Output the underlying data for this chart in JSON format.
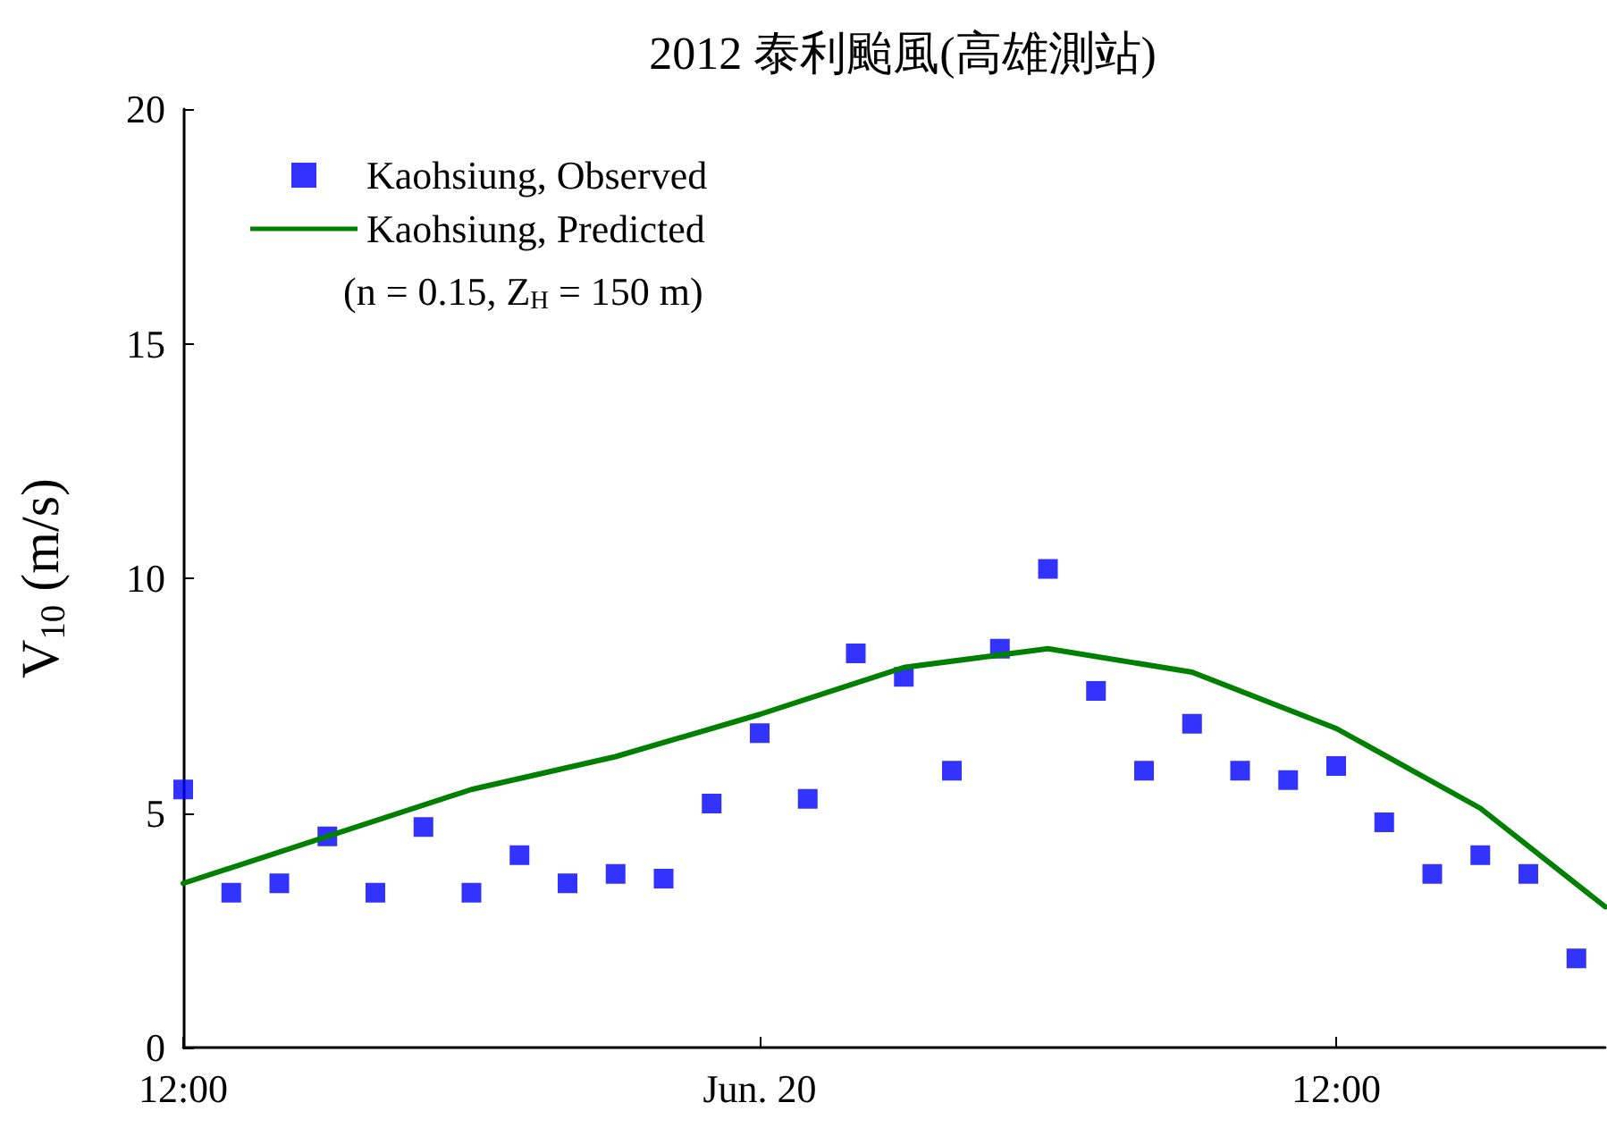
{
  "chart_data": {
    "type": "scatter",
    "title": "2012 泰利颱風(高雄測站)",
    "ylabel": "V$_{10}$ (m/s)",
    "xlim": [
      "2012-06-19T12:00",
      "2012-06-20T17:36"
    ],
    "xticks": [
      {
        "value": "2012-06-19T12:00",
        "label": "12:00"
      },
      {
        "value": "2012-06-20T00:00",
        "label": "Jun. 20"
      },
      {
        "value": "2012-06-20T12:00",
        "label": "12:00"
      }
    ],
    "ylim": [
      0,
      20
    ],
    "yticks": [
      0,
      5,
      10,
      15,
      20
    ],
    "grid": false,
    "legend": "top left",
    "annotations": [
      "(n = 0.15, Z$_{H}$ = 150 m)"
    ],
    "series": [
      {
        "name": "Kaohsiung, Observed",
        "marker": "square",
        "color": "#0000ff",
        "x": [
          "2012-06-19T12:00",
          "2012-06-19T13:00",
          "2012-06-19T14:00",
          "2012-06-19T15:00",
          "2012-06-19T16:00",
          "2012-06-19T17:00",
          "2012-06-19T18:00",
          "2012-06-19T19:00",
          "2012-06-19T20:00",
          "2012-06-19T21:00",
          "2012-06-19T22:00",
          "2012-06-19T23:00",
          "2012-06-20T00:00",
          "2012-06-20T01:00",
          "2012-06-20T02:00",
          "2012-06-20T03:00",
          "2012-06-20T04:00",
          "2012-06-20T05:00",
          "2012-06-20T06:00",
          "2012-06-20T07:00",
          "2012-06-20T08:00",
          "2012-06-20T09:00",
          "2012-06-20T10:00",
          "2012-06-20T11:00",
          "2012-06-20T12:00",
          "2012-06-20T13:00",
          "2012-06-20T14:00",
          "2012-06-20T15:00",
          "2012-06-20T16:00",
          "2012-06-20T17:00"
        ],
        "values": [
          5.5,
          3.3,
          3.5,
          4.5,
          3.3,
          4.7,
          3.3,
          4.1,
          3.5,
          3.7,
          3.6,
          5.2,
          6.7,
          5.3,
          8.4,
          7.9,
          5.9,
          8.5,
          10.2,
          7.6,
          5.9,
          6.9,
          5.9,
          5.7,
          6.0,
          4.8,
          3.7,
          4.1,
          3.7,
          1.9
        ]
      },
      {
        "name": "Kaohsiung, Predicted",
        "type": "line",
        "marker": "none",
        "line_style": "solid",
        "color": "#008000",
        "x": [
          "2012-06-19T12:00",
          "2012-06-19T18:00",
          "2012-06-19T21:00",
          "2012-06-20T00:00",
          "2012-06-20T03:00",
          "2012-06-20T06:00",
          "2012-06-20T09:00",
          "2012-06-20T12:00",
          "2012-06-20T15:00",
          "2012-06-20T17:36"
        ],
        "values": [
          3.5,
          5.5,
          6.2,
          7.1,
          8.1,
          8.5,
          8.0,
          6.8,
          5.1,
          3.0
        ]
      }
    ]
  }
}
